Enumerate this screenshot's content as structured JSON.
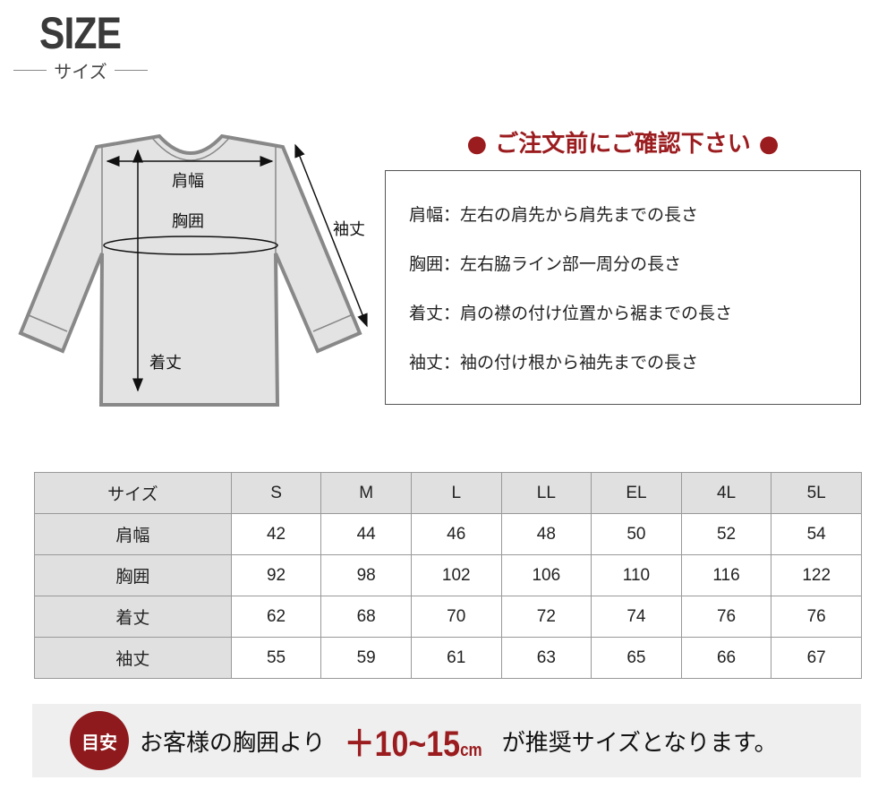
{
  "header": {
    "logo": "SIZE",
    "subtitle": "サイズ"
  },
  "diagram": {
    "shoulder": "肩幅",
    "chest": "胸囲",
    "length": "着丈",
    "sleeve": "袖丈"
  },
  "notice": {
    "title": "● ご注文前にご確認下さい ●",
    "items": [
      "肩幅：左右の肩先から肩先までの長さ",
      "胸囲：左右脇ライン部一周分の長さ",
      "着丈：肩の襟の付け位置から裾までの長さ",
      "袖丈：袖の付け根から袖先までの長さ"
    ]
  },
  "table": {
    "header": [
      "サイズ",
      "S",
      "M",
      "L",
      "LL",
      "EL",
      "4L",
      "5L"
    ],
    "rows": [
      [
        "肩幅",
        "42",
        "44",
        "46",
        "48",
        "50",
        "52",
        "54"
      ],
      [
        "胸囲",
        "92",
        "98",
        "102",
        "106",
        "110",
        "116",
        "122"
      ],
      [
        "着丈",
        "62",
        "68",
        "70",
        "72",
        "74",
        "76",
        "76"
      ],
      [
        "袖丈",
        "55",
        "59",
        "61",
        "63",
        "65",
        "66",
        "67"
      ]
    ]
  },
  "banner": {
    "badge": "目安",
    "pre": "お客様の胸囲より",
    "range": "＋10~15",
    "unit": "cm",
    "post": "が推奨サイズとなります。"
  },
  "colors": {
    "accent": "#9b1c1f",
    "shirt_fill": "#e3e3e3",
    "shirt_stroke": "#888888"
  }
}
